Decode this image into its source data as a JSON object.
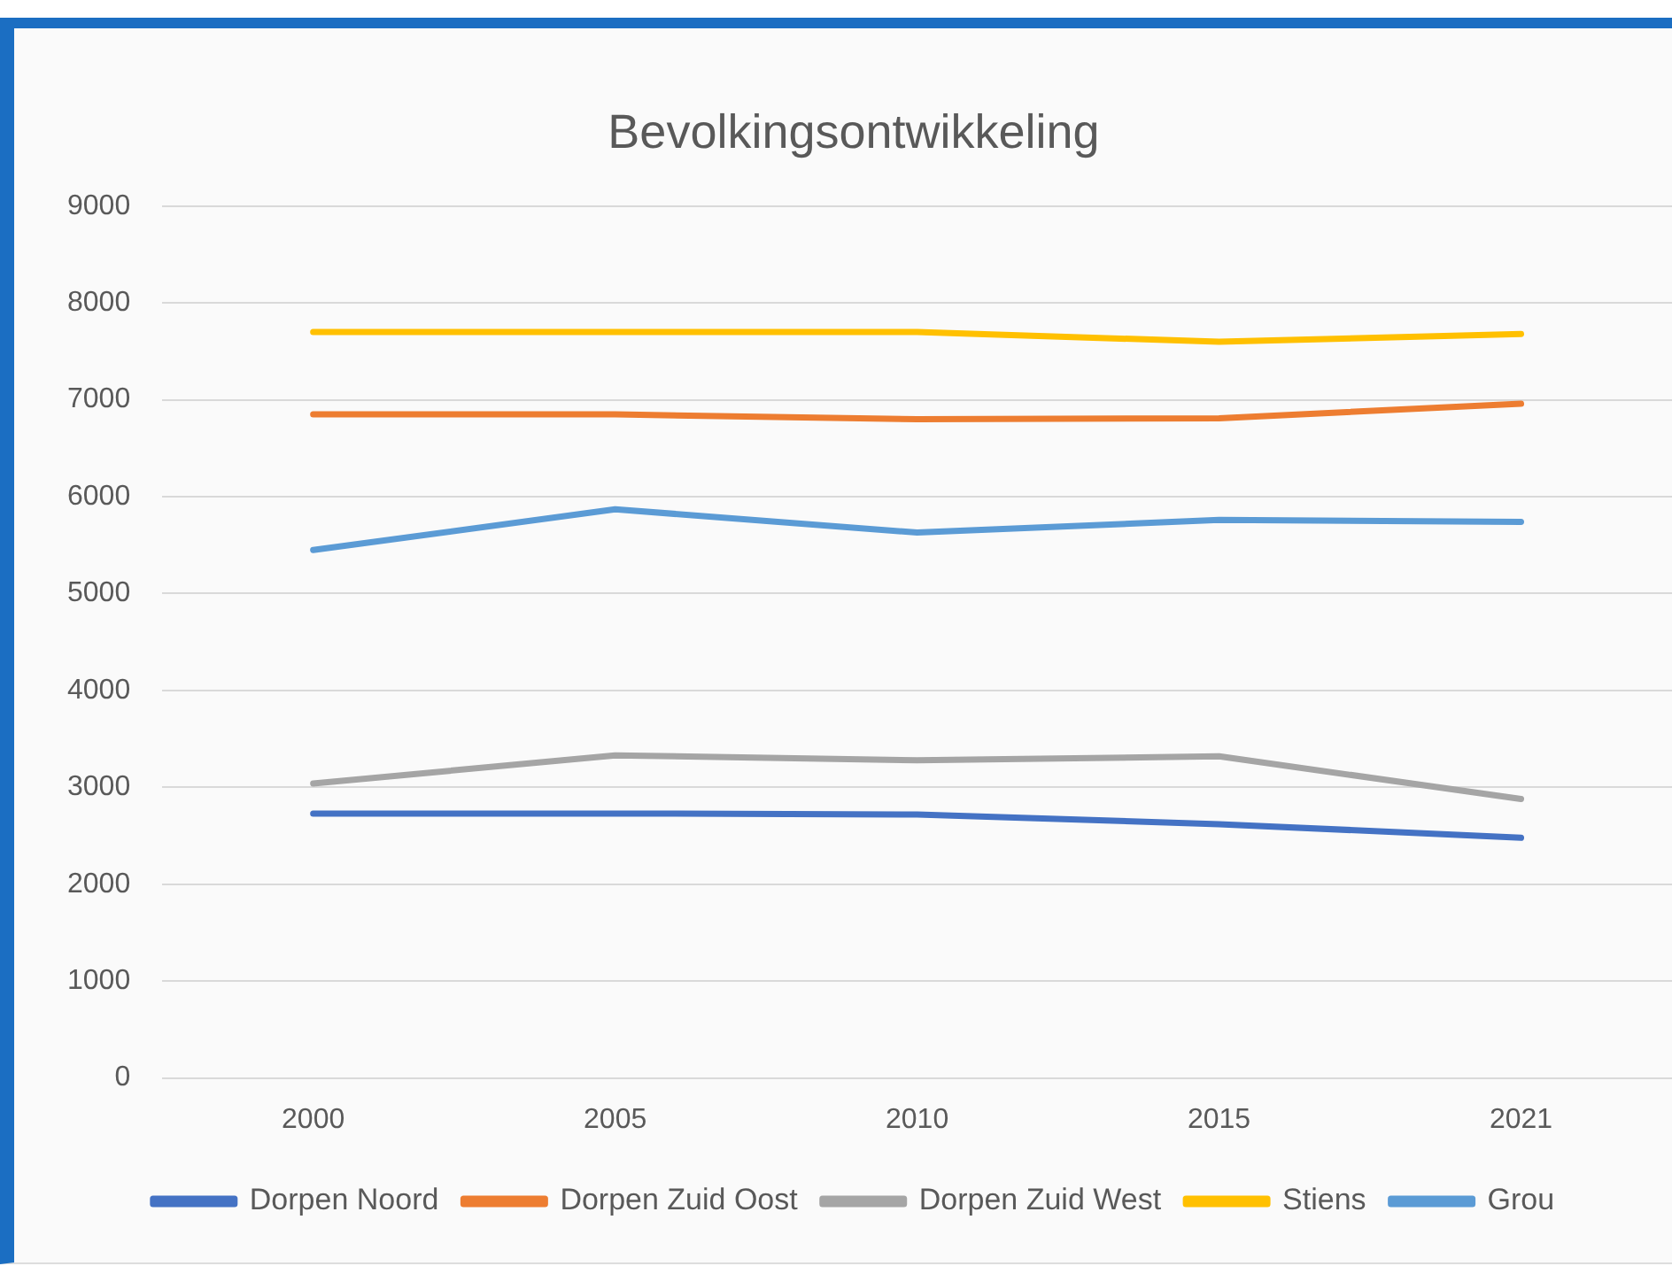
{
  "chart_data": {
    "type": "line",
    "title": "Bevolkingsontwikkeling",
    "categories": [
      "2000",
      "2005",
      "2010",
      "2015",
      "2021"
    ],
    "series": [
      {
        "name": "Dorpen Noord",
        "color": "#4472c4",
        "values": [
          2730,
          2730,
          2720,
          2620,
          2480
        ]
      },
      {
        "name": "Dorpen Zuid Oost",
        "color": "#ed7d31",
        "values": [
          6850,
          6850,
          6800,
          6810,
          6960
        ]
      },
      {
        "name": "Dorpen Zuid West",
        "color": "#a5a5a5",
        "values": [
          3040,
          3330,
          3280,
          3320,
          2880
        ]
      },
      {
        "name": "Stiens",
        "color": "#ffc000",
        "values": [
          7700,
          7700,
          7700,
          7600,
          7680
        ]
      },
      {
        "name": "Grou",
        "color": "#5b9bd5",
        "values": [
          5450,
          5870,
          5630,
          5760,
          5740
        ]
      }
    ],
    "ylim": [
      0,
      9000
    ],
    "yticks": [
      0,
      1000,
      2000,
      3000,
      4000,
      5000,
      6000,
      7000,
      8000,
      9000
    ],
    "grid": "y",
    "legend": "bottom",
    "marker": "none",
    "line_style": "solid"
  }
}
